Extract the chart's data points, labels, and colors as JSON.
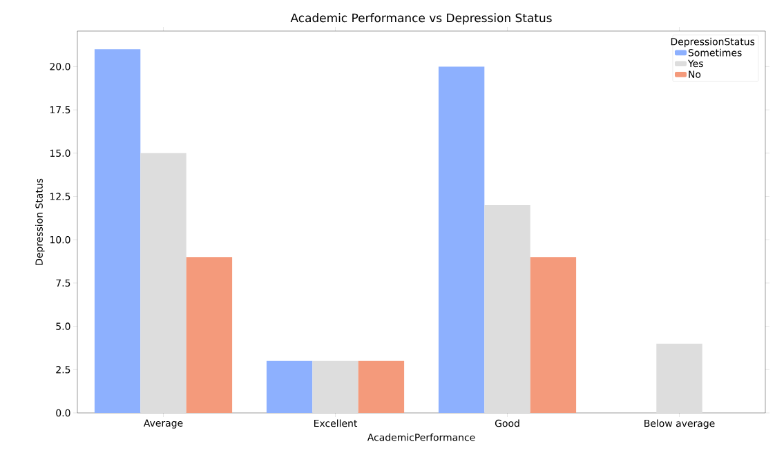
{
  "chart_data": {
    "type": "bar",
    "title": "Academic Performance vs Depression Status",
    "xlabel": "AcademicPerformance",
    "ylabel": "Depression Status",
    "legend_title": "DepressionStatus",
    "categories": [
      "Average",
      "Excellent",
      "Good",
      "Below average"
    ],
    "series": [
      {
        "name": "Sometimes",
        "color": "#8db0fe",
        "values": [
          21,
          3,
          20,
          null
        ]
      },
      {
        "name": "Yes",
        "color": "#dddddd",
        "values": [
          15,
          3,
          12,
          4
        ]
      },
      {
        "name": "No",
        "color": "#f49a7b",
        "values": [
          9,
          3,
          9,
          null
        ]
      }
    ],
    "ylim": [
      0,
      22.05
    ],
    "yticks": [
      {
        "value": 0,
        "label": "0.0"
      },
      {
        "value": 2.5,
        "label": "2.5"
      },
      {
        "value": 5,
        "label": "5.0"
      },
      {
        "value": 7.5,
        "label": "7.5"
      },
      {
        "value": 10,
        "label": "10.0"
      },
      {
        "value": 12.5,
        "label": "12.5"
      },
      {
        "value": 15,
        "label": "15.0"
      },
      {
        "value": 17.5,
        "label": "17.5"
      },
      {
        "value": 20,
        "label": "20.0"
      }
    ],
    "legend": "top right"
  }
}
